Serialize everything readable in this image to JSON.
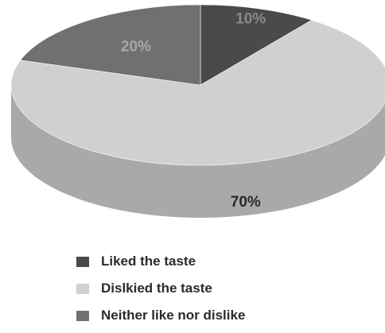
{
  "chart_data": {
    "type": "pie",
    "style": "3d",
    "categories": [
      "Liked the taste",
      "Dislkied the taste",
      "Neither like nor dislike"
    ],
    "values": [
      10,
      70,
      20
    ],
    "data_labels": [
      "10%",
      "70%",
      "20%"
    ],
    "colors": [
      "#4a4a4a",
      "#d0d0d0",
      "#707070"
    ],
    "side_colors": [
      "#2e2e2e",
      "#a9a9a9",
      "#555555"
    ],
    "label_colors": [
      "#8a8a8a",
      "#2a2a2a",
      "#a8a8a8"
    ],
    "legend_position": "bottom"
  }
}
